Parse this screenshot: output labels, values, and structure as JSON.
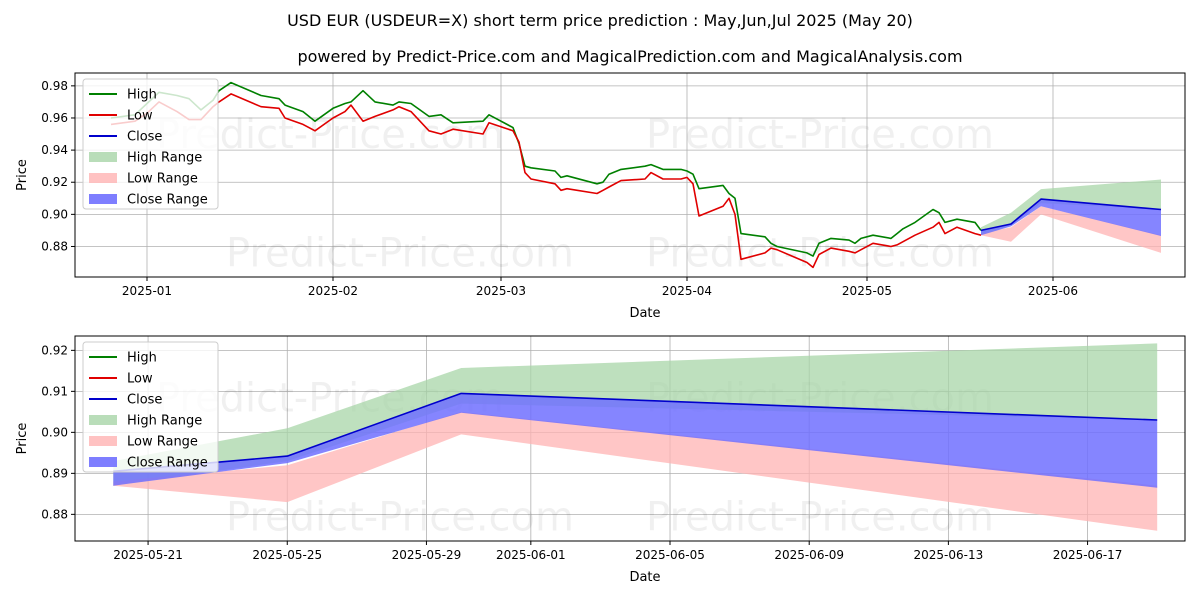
{
  "title": "USD EUR (USDEUR=X) short term price prediction : May,Jun,Jul 2025 (May 20)",
  "subtitle": "powered by Predict-Price.com and MagicalPrediction.com and MagicalAnalysis.com",
  "watermark": "Predict-Price.com",
  "colors": {
    "high": "#008000",
    "low": "#e00000",
    "close": "#0000cc",
    "high_range": "#a8d5a8",
    "low_range": "#ffb3b3",
    "close_range": "#7070ff"
  },
  "chart_data": [
    {
      "type": "line",
      "xlabel": "Date",
      "ylabel": "Price",
      "xlim": [
        "2024-12-20",
        "2025-06-23"
      ],
      "ylim": [
        0.861,
        0.988
      ],
      "x_ticks": [
        "2025-01-01",
        "2025-02-01",
        "2025-03-01",
        "2025-04-01",
        "2025-05-01",
        "2025-06-01"
      ],
      "x_tick_labels": [
        "2025-01",
        "2025-02",
        "2025-03",
        "2025-04",
        "2025-05",
        "2025-06"
      ],
      "y_ticks": [
        0.88,
        0.9,
        0.92,
        0.94,
        0.96,
        0.98
      ],
      "y_tick_labels": [
        "0.88",
        "0.90",
        "0.92",
        "0.94",
        "0.96",
        "0.98"
      ],
      "legend_position": "top-left",
      "legend": [
        "High",
        "Low",
        "Close",
        "High Range",
        "Low Range",
        "Close Range"
      ],
      "series": [
        {
          "name": "High",
          "x": [
            "2024-12-26",
            "2024-12-28",
            "2024-12-30",
            "2025-01-01",
            "2025-01-03",
            "2025-01-06",
            "2025-01-08",
            "2025-01-10",
            "2025-01-12",
            "2025-01-13",
            "2025-01-15",
            "2025-01-20",
            "2025-01-23",
            "2025-01-24",
            "2025-01-27",
            "2025-01-29",
            "2025-02-01",
            "2025-02-03",
            "2025-02-04",
            "2025-02-06",
            "2025-02-08",
            "2025-02-11",
            "2025-02-12",
            "2025-02-14",
            "2025-02-17",
            "2025-02-19",
            "2025-02-21",
            "2025-02-26",
            "2025-02-27",
            "2025-03-03",
            "2025-03-04",
            "2025-03-05",
            "2025-03-06",
            "2025-03-10",
            "2025-03-11",
            "2025-03-12",
            "2025-03-17",
            "2025-03-18",
            "2025-03-19",
            "2025-03-21",
            "2025-03-25",
            "2025-03-26",
            "2025-03-28",
            "2025-03-31",
            "2025-04-01",
            "2025-04-02",
            "2025-04-03",
            "2025-04-07",
            "2025-04-08",
            "2025-04-09",
            "2025-04-10",
            "2025-04-14",
            "2025-04-15",
            "2025-04-16",
            "2025-04-21",
            "2025-04-22",
            "2025-04-23",
            "2025-04-25",
            "2025-04-28",
            "2025-04-29",
            "2025-04-30",
            "2025-05-02",
            "2025-05-05",
            "2025-05-06",
            "2025-05-07",
            "2025-05-09",
            "2025-05-12",
            "2025-05-13",
            "2025-05-14",
            "2025-05-16",
            "2025-05-19",
            "2025-05-20"
          ],
          "values": [
            0.96,
            0.961,
            0.962,
            0.969,
            0.976,
            0.974,
            0.972,
            0.965,
            0.971,
            0.977,
            0.982,
            0.974,
            0.972,
            0.968,
            0.964,
            0.958,
            0.966,
            0.969,
            0.97,
            0.977,
            0.97,
            0.968,
            0.97,
            0.969,
            0.961,
            0.962,
            0.957,
            0.958,
            0.962,
            0.954,
            0.944,
            0.93,
            0.929,
            0.927,
            0.923,
            0.924,
            0.919,
            0.92,
            0.925,
            0.928,
            0.93,
            0.931,
            0.928,
            0.928,
            0.927,
            0.925,
            0.916,
            0.918,
            0.913,
            0.91,
            0.888,
            0.886,
            0.882,
            0.88,
            0.876,
            0.874,
            0.882,
            0.885,
            0.884,
            0.882,
            0.885,
            0.887,
            0.885,
            0.888,
            0.891,
            0.895,
            0.903,
            0.901,
            0.895,
            0.897,
            0.895,
            0.89
          ]
        },
        {
          "name": "Low",
          "x": [
            "2024-12-26",
            "2024-12-28",
            "2024-12-30",
            "2025-01-01",
            "2025-01-03",
            "2025-01-06",
            "2025-01-08",
            "2025-01-10",
            "2025-01-12",
            "2025-01-13",
            "2025-01-15",
            "2025-01-20",
            "2025-01-23",
            "2025-01-24",
            "2025-01-27",
            "2025-01-29",
            "2025-02-01",
            "2025-02-03",
            "2025-02-04",
            "2025-02-06",
            "2025-02-08",
            "2025-02-11",
            "2025-02-12",
            "2025-02-14",
            "2025-02-17",
            "2025-02-19",
            "2025-02-21",
            "2025-02-26",
            "2025-02-27",
            "2025-03-03",
            "2025-03-04",
            "2025-03-05",
            "2025-03-06",
            "2025-03-10",
            "2025-03-11",
            "2025-03-12",
            "2025-03-17",
            "2025-03-18",
            "2025-03-19",
            "2025-03-21",
            "2025-03-25",
            "2025-03-26",
            "2025-03-28",
            "2025-03-31",
            "2025-04-01",
            "2025-04-02",
            "2025-04-03",
            "2025-04-07",
            "2025-04-08",
            "2025-04-09",
            "2025-04-10",
            "2025-04-14",
            "2025-04-15",
            "2025-04-16",
            "2025-04-21",
            "2025-04-22",
            "2025-04-23",
            "2025-04-25",
            "2025-04-28",
            "2025-04-29",
            "2025-04-30",
            "2025-05-02",
            "2025-05-05",
            "2025-05-06",
            "2025-05-07",
            "2025-05-09",
            "2025-05-12",
            "2025-05-13",
            "2025-05-14",
            "2025-05-16",
            "2025-05-19",
            "2025-05-20"
          ],
          "values": [
            0.956,
            0.957,
            0.958,
            0.963,
            0.97,
            0.964,
            0.959,
            0.959,
            0.967,
            0.97,
            0.975,
            0.967,
            0.966,
            0.96,
            0.956,
            0.952,
            0.96,
            0.964,
            0.968,
            0.958,
            0.961,
            0.965,
            0.967,
            0.964,
            0.952,
            0.95,
            0.953,
            0.95,
            0.957,
            0.952,
            0.945,
            0.926,
            0.922,
            0.919,
            0.915,
            0.916,
            0.913,
            0.915,
            0.917,
            0.921,
            0.922,
            0.926,
            0.922,
            0.922,
            0.923,
            0.919,
            0.899,
            0.905,
            0.91,
            0.9,
            0.872,
            0.876,
            0.879,
            0.878,
            0.87,
            0.867,
            0.875,
            0.879,
            0.877,
            0.876,
            0.878,
            0.882,
            0.88,
            0.881,
            0.883,
            0.887,
            0.892,
            0.895,
            0.888,
            0.892,
            0.888,
            0.887
          ]
        },
        {
          "name": "Close",
          "x": [
            "2025-05-20",
            "2025-05-25",
            "2025-05-30",
            "2025-06-19"
          ],
          "values": [
            0.89,
            0.894,
            0.9095,
            0.903
          ]
        }
      ],
      "ranges": [
        {
          "name": "High Range",
          "x": [
            "2025-05-20",
            "2025-05-25",
            "2025-05-30",
            "2025-06-19"
          ],
          "upper": [
            0.892,
            0.901,
            0.9157,
            0.9217
          ],
          "lower": [
            0.887,
            0.893,
            0.907,
            0.903
          ]
        },
        {
          "name": "Low Range",
          "x": [
            "2025-05-20",
            "2025-05-25",
            "2025-05-30",
            "2025-06-19"
          ],
          "upper": [
            0.888,
            0.892,
            0.905,
            0.887
          ],
          "lower": [
            0.887,
            0.883,
            0.9,
            0.876
          ]
        },
        {
          "name": "Close Range",
          "x": [
            "2025-05-20",
            "2025-05-25",
            "2025-05-30",
            "2025-06-19"
          ],
          "upper": [
            0.8905,
            0.894,
            0.9095,
            0.903
          ],
          "lower": [
            0.887,
            0.8925,
            0.905,
            0.8865
          ]
        }
      ]
    },
    {
      "type": "line",
      "xlabel": "Date",
      "ylabel": "Price",
      "xlim": [
        "2025-05-18.9",
        "2025-06-19.8"
      ],
      "ylim": [
        0.8735,
        0.9235
      ],
      "x_ticks": [
        "2025-05-21",
        "2025-05-25",
        "2025-05-29",
        "2025-06-01",
        "2025-06-05",
        "2025-06-09",
        "2025-06-13",
        "2025-06-17"
      ],
      "x_tick_labels": [
        "2025-05-21",
        "2025-05-25",
        "2025-05-29",
        "2025-06-01",
        "2025-06-05",
        "2025-06-09",
        "2025-06-13",
        "2025-06-17"
      ],
      "y_ticks": [
        0.88,
        0.89,
        0.9,
        0.91,
        0.92
      ],
      "y_tick_labels": [
        "0.88",
        "0.89",
        "0.90",
        "0.91",
        "0.92"
      ],
      "legend_position": "top-left",
      "legend": [
        "High",
        "Low",
        "Close",
        "High Range",
        "Low Range",
        "Close Range"
      ],
      "series": [
        {
          "name": "Close",
          "x": [
            "2025-05-20",
            "2025-05-25",
            "2025-05-30",
            "2025-06-19"
          ],
          "values": [
            0.8905,
            0.8942,
            0.9095,
            0.903
          ]
        }
      ],
      "ranges": [
        {
          "name": "High Range",
          "x": [
            "2025-05-20",
            "2025-05-25",
            "2025-05-30",
            "2025-06-19"
          ],
          "upper": [
            0.893,
            0.901,
            0.9157,
            0.9217
          ],
          "lower": [
            0.887,
            0.893,
            0.907,
            0.903
          ]
        },
        {
          "name": "Low Range",
          "x": [
            "2025-05-20",
            "2025-05-25",
            "2025-05-30",
            "2025-06-19"
          ],
          "upper": [
            0.888,
            0.892,
            0.905,
            0.887
          ],
          "lower": [
            0.887,
            0.883,
            0.8995,
            0.876
          ]
        },
        {
          "name": "Close Range",
          "x": [
            "2025-05-20",
            "2025-05-25",
            "2025-05-30",
            "2025-06-19"
          ],
          "upper": [
            0.8905,
            0.8942,
            0.9095,
            0.903
          ],
          "lower": [
            0.887,
            0.8925,
            0.9048,
            0.8865
          ]
        }
      ]
    }
  ]
}
